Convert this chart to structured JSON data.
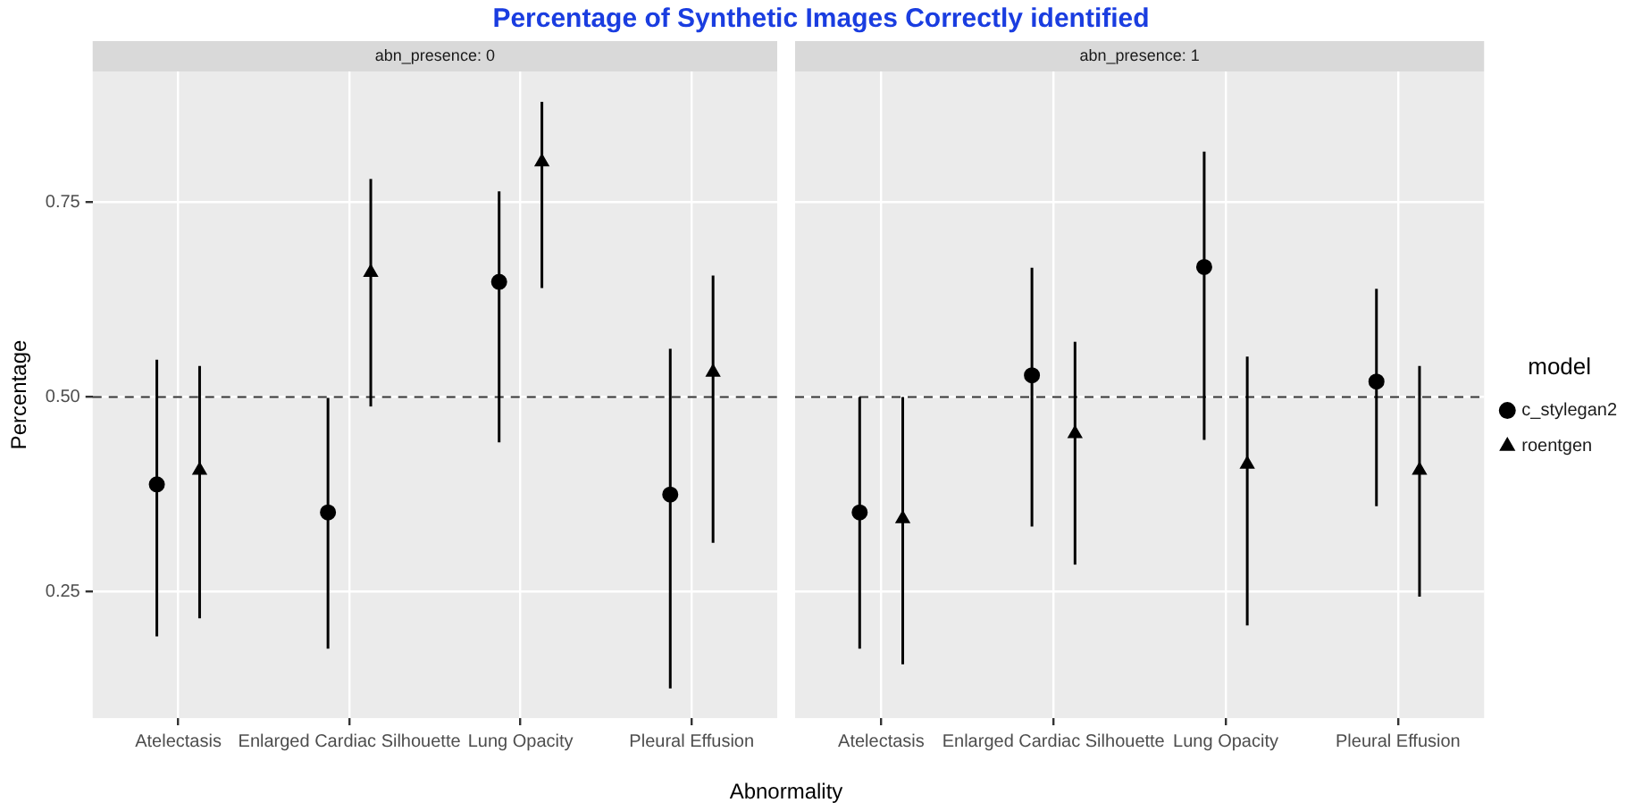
{
  "chart_data": [
    {
      "type": "scatter",
      "title": "Percentage of Synthetic Images Correctly identified",
      "subtitle": "abn_presence: 0",
      "xlabel": "Abnormality",
      "ylabel": "Percentage",
      "categories": [
        "Atelectasis",
        "Enlarged Cardiac Silhouette",
        "Lung Opacity",
        "Pleural Effusion"
      ],
      "series": [
        {
          "color": "#000000",
          "marker": "circle",
          "values": [
            0.388,
            0.352,
            0.648,
            0.375
          ],
          "errors": [
            [
              0.193,
              0.548
            ],
            [
              0.177,
              0.499
            ],
            [
              0.442,
              0.764
            ],
            [
              0.126,
              0.562
            ]
          ]
        },
        {
          "color": "#000000",
          "marker": "triangle",
          "values": [
            0.406,
            0.66,
            0.802,
            0.532
          ],
          "errors": [
            [
              0.216,
              0.54
            ],
            [
              0.488,
              0.78
            ],
            [
              0.64,
              0.879
            ],
            [
              0.313,
              0.656
            ]
          ]
        }
      ],
      "ylim": [
        0.088,
        0.918
      ],
      "yticks": [
        0.25,
        {
          "value": 0.5,
          "label": "0.50"
        },
        0.75
      ],
      "grid": true,
      "legend": false,
      "ref_lines": [
        {
          "axis": "y",
          "value": 0.5,
          "line_style": "dashed",
          "color": "#333333"
        }
      ]
    },
    {
      "type": "scatter",
      "subtitle": "abn_presence: 1",
      "legend_title": "model",
      "categories": [
        "Atelectasis",
        "Enlarged Cardiac Silhouette",
        "Lung Opacity",
        "Pleural Effusion"
      ],
      "series": [
        {
          "name": "c_stylegan2",
          "color": "#000000",
          "marker": "circle",
          "values": [
            0.352,
            0.528,
            0.667,
            0.52
          ],
          "errors": [
            [
              0.177,
              0.5
            ],
            [
              0.334,
              0.666
            ],
            [
              0.445,
              0.815
            ],
            [
              0.36,
              0.639
            ]
          ]
        },
        {
          "name": "roentgen",
          "color": "#000000",
          "marker": "triangle",
          "values": [
            0.344,
            0.453,
            0.414,
            0.406
          ],
          "errors": [
            [
              0.157,
              0.5
            ],
            [
              0.285,
              0.571
            ],
            [
              0.207,
              0.552
            ],
            [
              0.244,
              0.54
            ]
          ]
        }
      ],
      "ylim": [
        0.088,
        0.918
      ],
      "yticks": [
        0.25,
        0.5,
        0.75
      ],
      "grid": true,
      "legend": "right",
      "tick_labels": "x",
      "ref_lines": [
        {
          "axis": "y",
          "value": 0.5,
          "line_style": "dashed",
          "color": "#333333"
        }
      ]
    }
  ]
}
